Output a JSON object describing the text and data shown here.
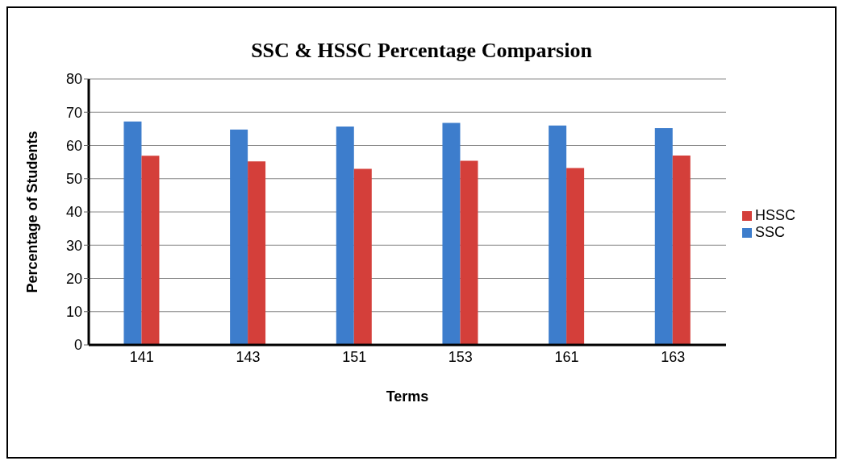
{
  "chart_data": {
    "type": "bar",
    "title": "SSC & HSSC Percentage Comparsion",
    "xlabel": "Terms",
    "ylabel": "Percentage  of Students",
    "categories": [
      "141",
      "143",
      "151",
      "153",
      "161",
      "163"
    ],
    "series": [
      {
        "name": "SSC",
        "color": "#3d7dcc",
        "values": [
          67.2,
          64.8,
          65.7,
          66.8,
          66.0,
          65.2
        ]
      },
      {
        "name": "HSSC",
        "color": "#d43f3a",
        "values": [
          56.9,
          55.2,
          53.0,
          55.4,
          53.2,
          57.0
        ]
      }
    ],
    "ylim": [
      0,
      80
    ],
    "yticks": [
      0,
      10,
      20,
      30,
      40,
      50,
      60,
      70,
      80
    ],
    "grid": "y",
    "legend": "right"
  }
}
